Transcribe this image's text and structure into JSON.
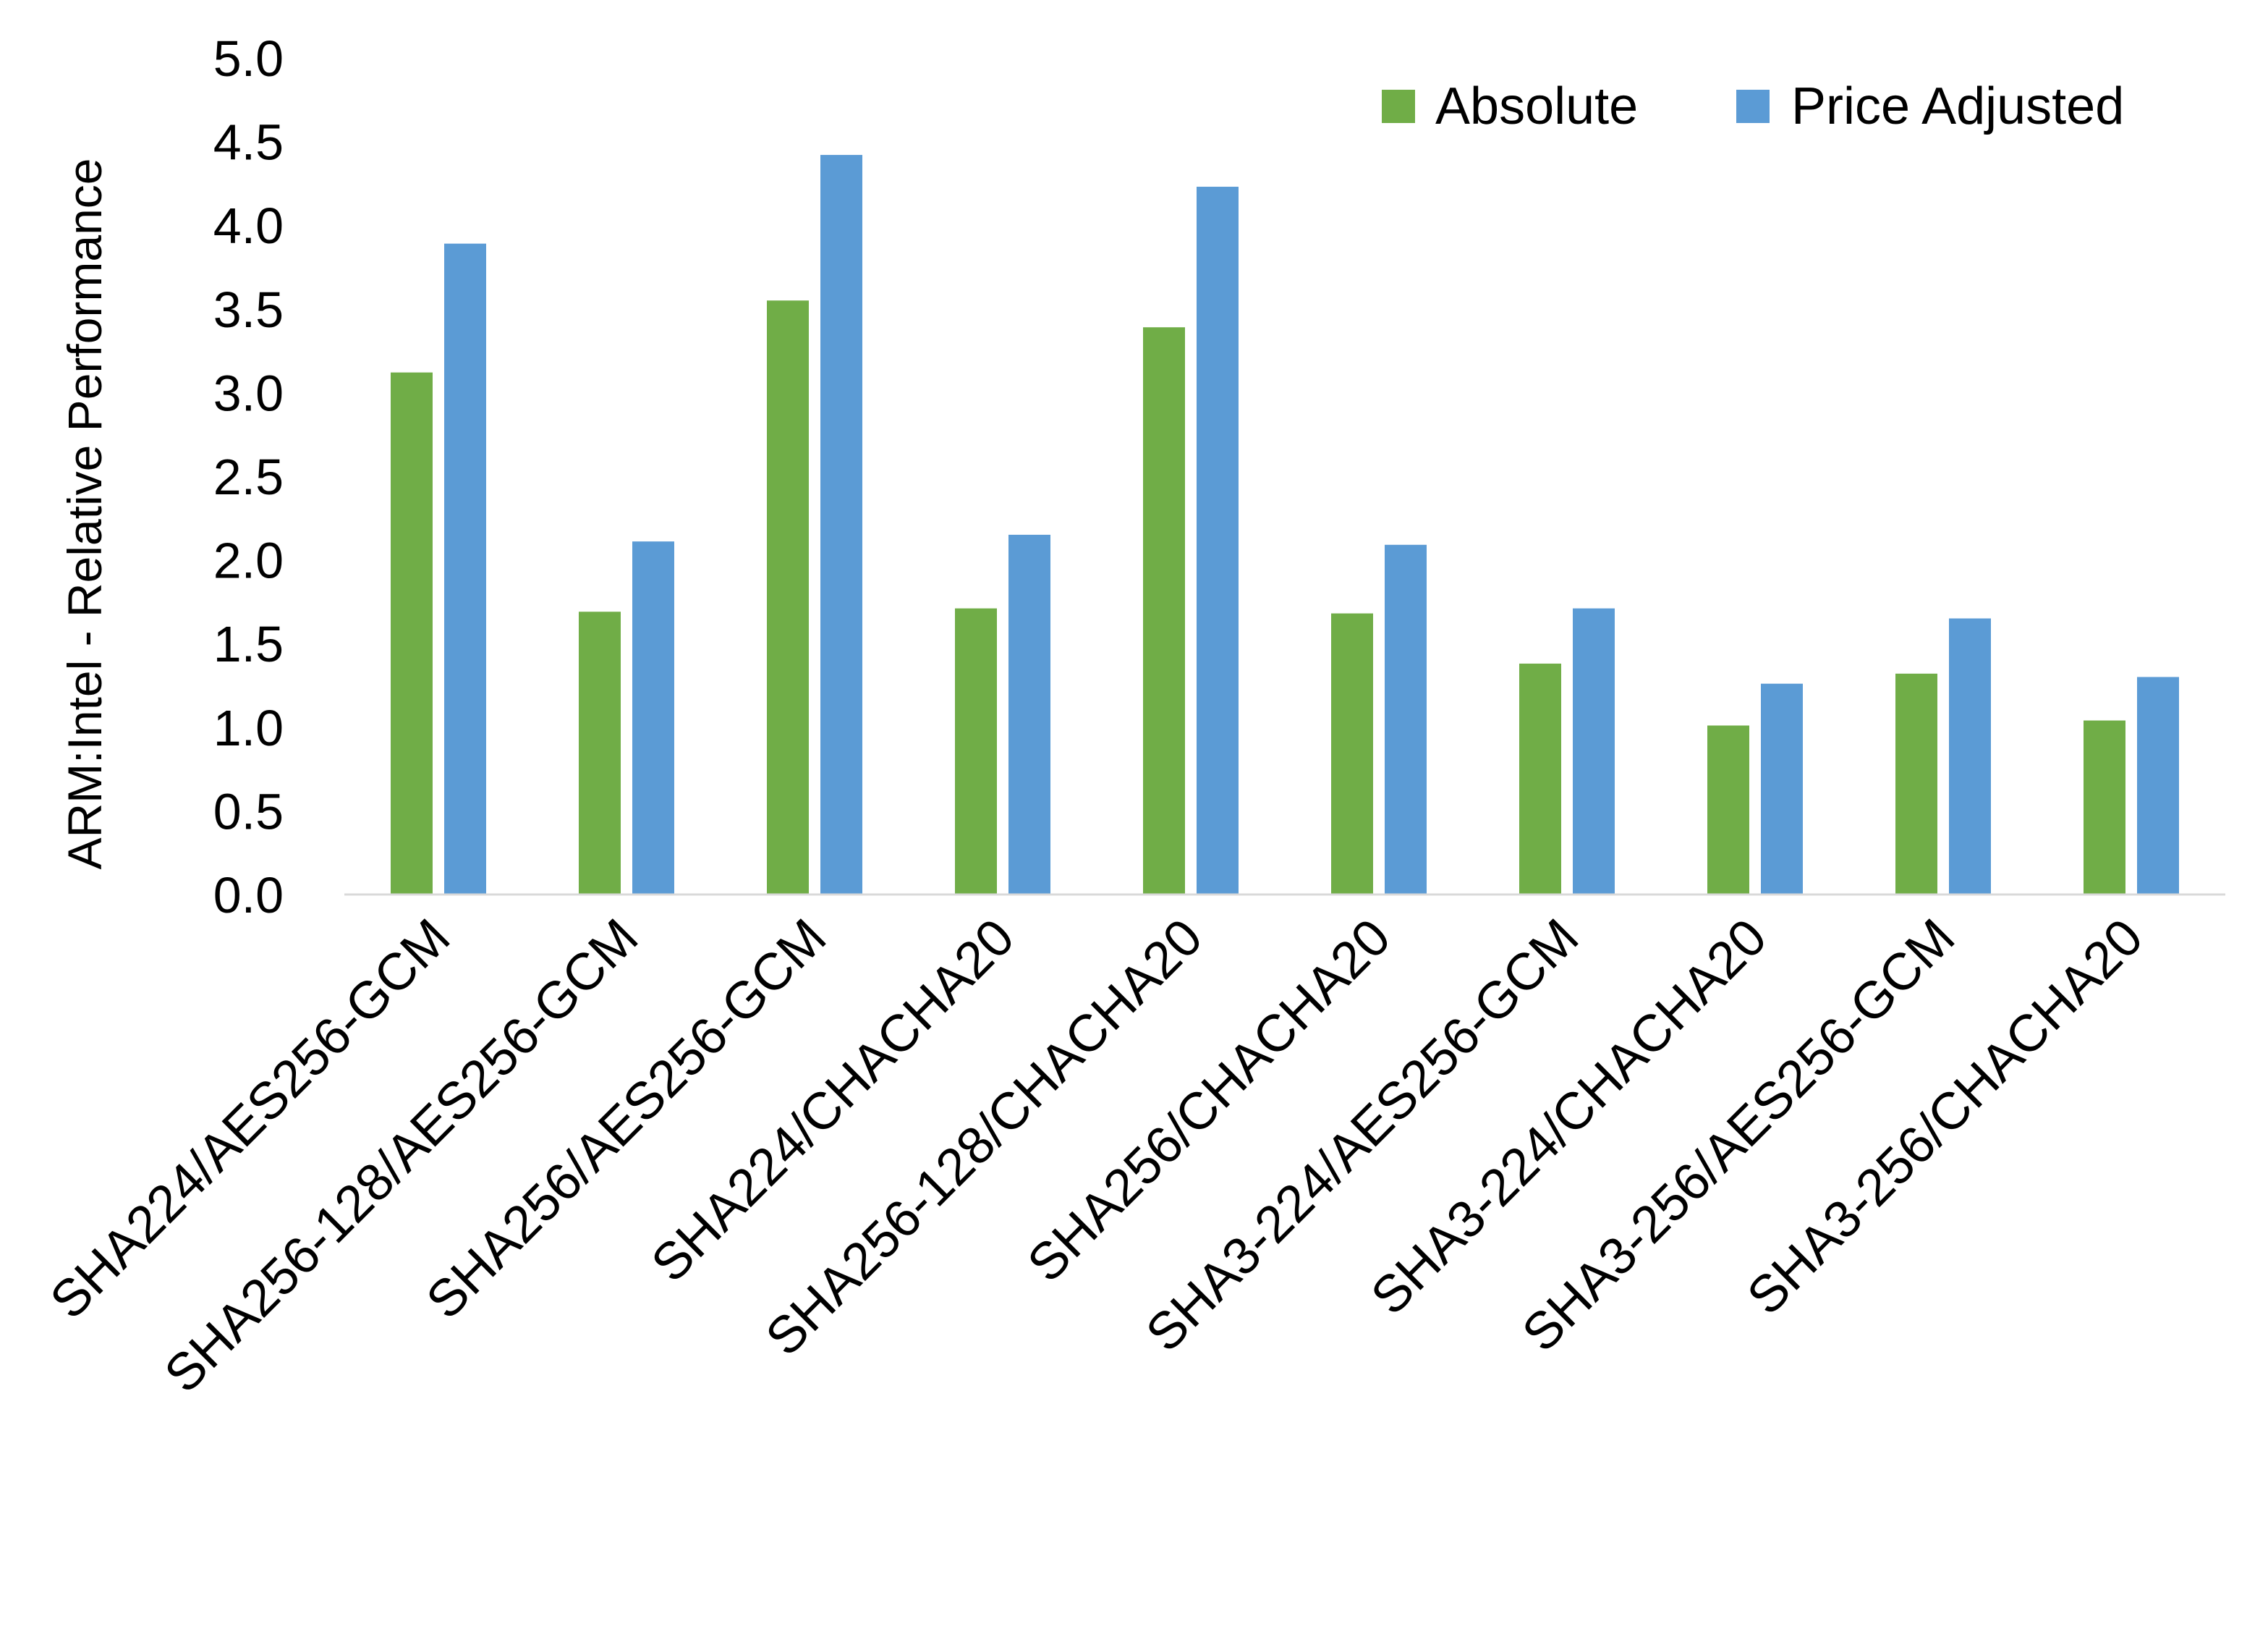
{
  "chart_data": {
    "type": "bar",
    "title": "",
    "xlabel": "",
    "ylabel": "ARM:Intel - Relative Performance",
    "ylim": [
      0,
      5
    ],
    "yticks": [
      "0.0",
      "0.5",
      "1.0",
      "1.5",
      "2.0",
      "2.5",
      "3.0",
      "3.5",
      "4.0",
      "4.5",
      "5.0"
    ],
    "grid": false,
    "legend_position": "top-right",
    "categories": [
      "SHA224/AES256-GCM",
      "SHA256-128/AES256-GCM",
      "SHA256/AES256-GCM",
      "SHA224/CHACHA20",
      "SHA256-128/CHACHA20",
      "SHA256/CHACHA20",
      "SHA3-224/AES256-GCM",
      "SHA3-224/CHACHA20",
      "SHA3-256/AES256-GCM",
      "SHA3-256/CHACHA20"
    ],
    "series": [
      {
        "name": "Absolute",
        "color": "#70AD47",
        "values": [
          3.12,
          1.69,
          3.55,
          1.71,
          3.39,
          1.68,
          1.38,
          1.01,
          1.32,
          1.04
        ]
      },
      {
        "name": "Price Adjusted",
        "color": "#5B9BD5",
        "values": [
          3.89,
          2.11,
          4.42,
          2.15,
          4.23,
          2.09,
          1.71,
          1.26,
          1.65,
          1.3
        ]
      }
    ]
  }
}
